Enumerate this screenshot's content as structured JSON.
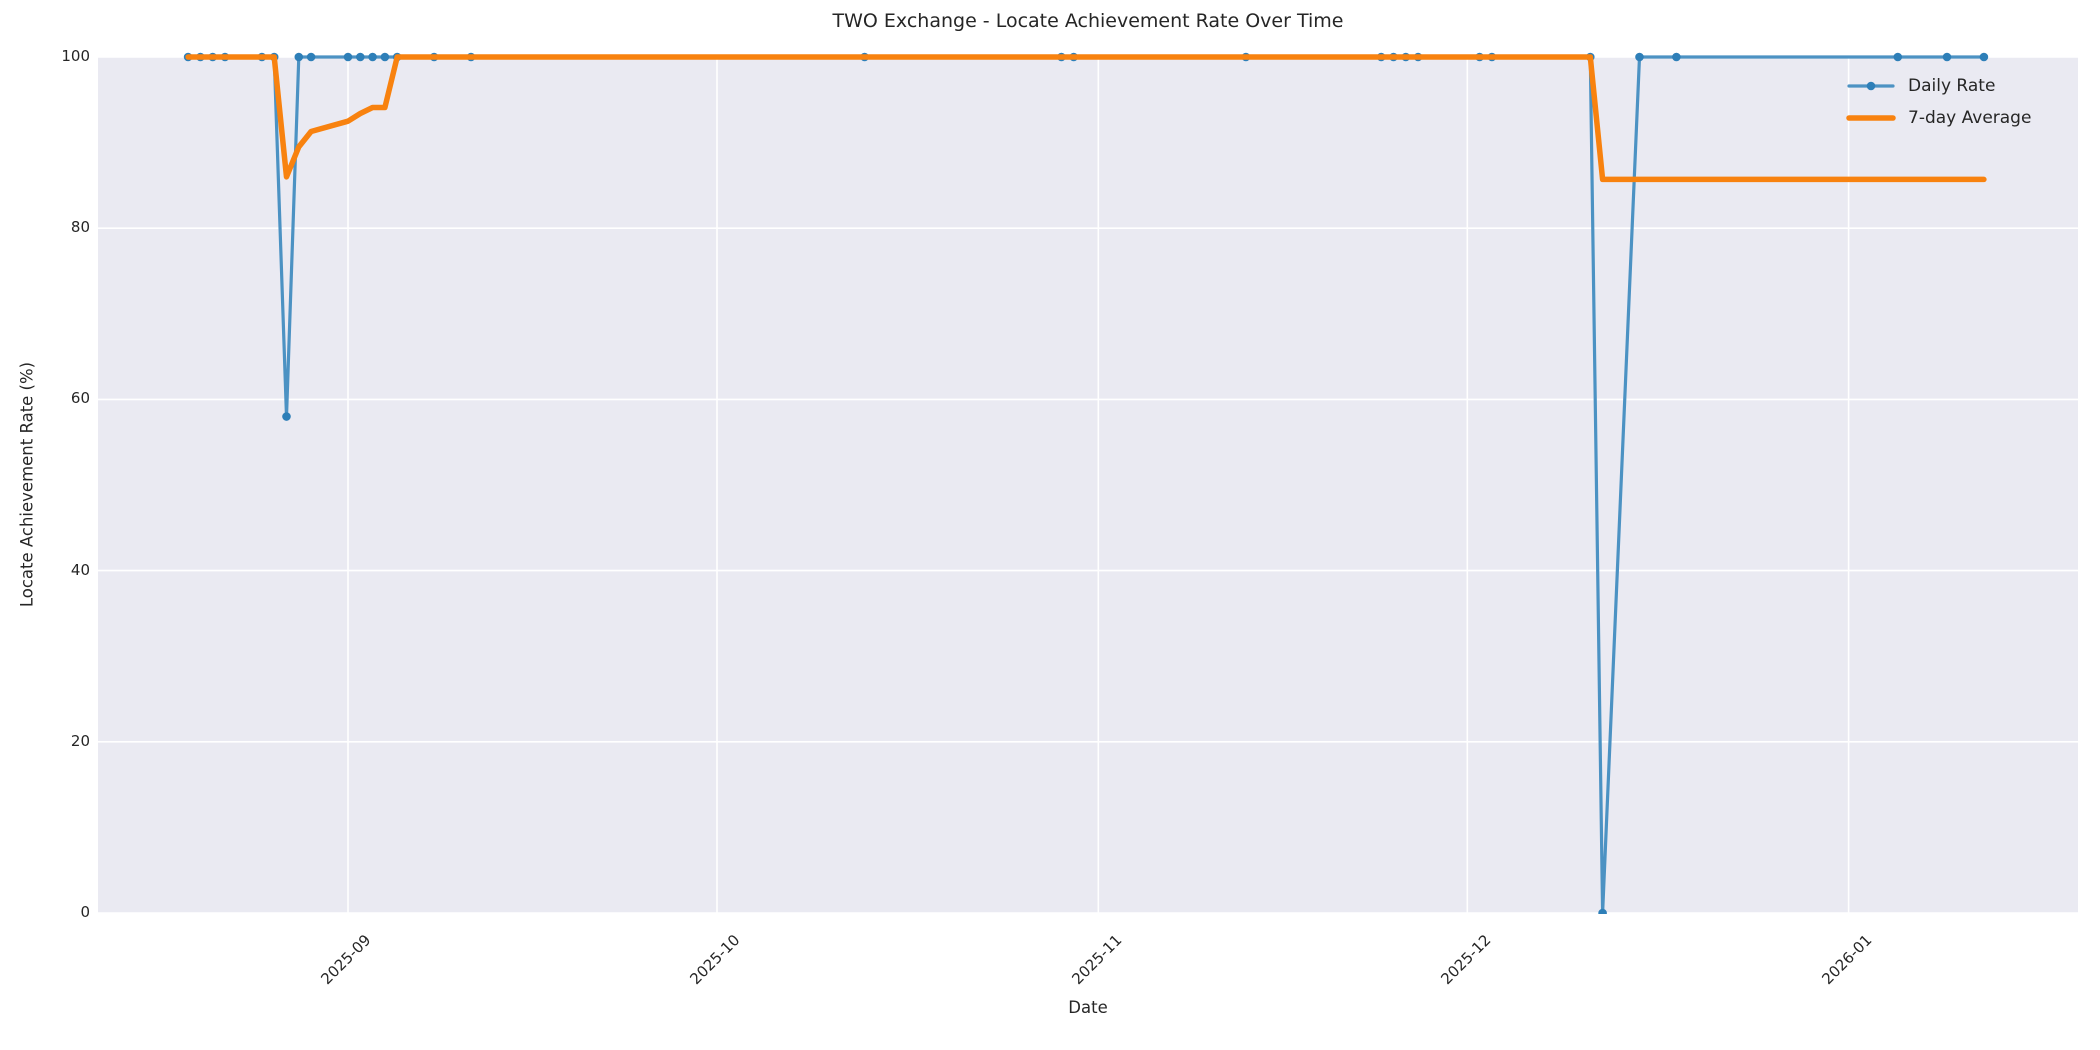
{
  "chart_data": {
    "type": "line",
    "title": "TWO Exchange - Locate Achievement Rate Over Time",
    "xlabel": "Date",
    "ylabel": "Locate Achievement Rate (%)",
    "x_tick_labels": [
      "2025-09",
      "2025-10",
      "2025-11",
      "2025-12",
      "2026-01"
    ],
    "y_tick_labels": [
      0,
      20,
      40,
      60,
      80,
      100
    ],
    "ylim": [
      0,
      100
    ],
    "x_start": "2025-08-19",
    "x_end": "2026-01-12",
    "grid": true,
    "legend_position": "upper right",
    "plot_background": "#EAEAF2",
    "grid_color": "#FFFFFF",
    "series": [
      {
        "name": "Daily Rate",
        "style": "line+markers",
        "color": "#4C92C3",
        "marker_color": "#2E7FB8",
        "line_width": 3.2,
        "marker_radius": 4.3,
        "points": [
          [
            "2025-08-19",
            100
          ],
          [
            "2025-08-20",
            100
          ],
          [
            "2025-08-21",
            100
          ],
          [
            "2025-08-22",
            100
          ],
          [
            "2025-08-25",
            100
          ],
          [
            "2025-08-26",
            100
          ],
          [
            "2025-08-27",
            58
          ],
          [
            "2025-08-28",
            100
          ],
          [
            "2025-08-29",
            100
          ],
          [
            "2025-09-01",
            100
          ],
          [
            "2025-09-02",
            100
          ],
          [
            "2025-09-03",
            100
          ],
          [
            "2025-09-04",
            100
          ],
          [
            "2025-09-05",
            100
          ],
          [
            "2025-09-08",
            100
          ],
          [
            "2025-09-11",
            100
          ],
          [
            "2025-10-13",
            100
          ],
          [
            "2025-10-29",
            100
          ],
          [
            "2025-10-30",
            100
          ],
          [
            "2025-11-13",
            100
          ],
          [
            "2025-11-24",
            100
          ],
          [
            "2025-11-25",
            100
          ],
          [
            "2025-11-26",
            100
          ],
          [
            "2025-11-27",
            100
          ],
          [
            "2025-12-02",
            100
          ],
          [
            "2025-12-03",
            100
          ],
          [
            "2025-12-11",
            100
          ],
          [
            "2025-12-12",
            0
          ],
          [
            "2025-12-15",
            100
          ],
          [
            "2025-12-18",
            100
          ],
          [
            "2026-01-05",
            100
          ],
          [
            "2026-01-09",
            100
          ],
          [
            "2026-01-12",
            100
          ]
        ]
      },
      {
        "name": "7-day Average",
        "style": "line",
        "color": "#F8820F",
        "line_width": 5.5,
        "points": [
          [
            "2025-08-19",
            100
          ],
          [
            "2025-08-26",
            100
          ],
          [
            "2025-08-27",
            86
          ],
          [
            "2025-08-28",
            89.5
          ],
          [
            "2025-08-29",
            91.3
          ],
          [
            "2025-09-01",
            92.5
          ],
          [
            "2025-09-02",
            93.4
          ],
          [
            "2025-09-03",
            94.1
          ],
          [
            "2025-09-04",
            94.1
          ],
          [
            "2025-09-05",
            100
          ],
          [
            "2025-12-11",
            100
          ],
          [
            "2025-12-12",
            85.7
          ],
          [
            "2026-01-12",
            85.7
          ]
        ]
      }
    ]
  }
}
